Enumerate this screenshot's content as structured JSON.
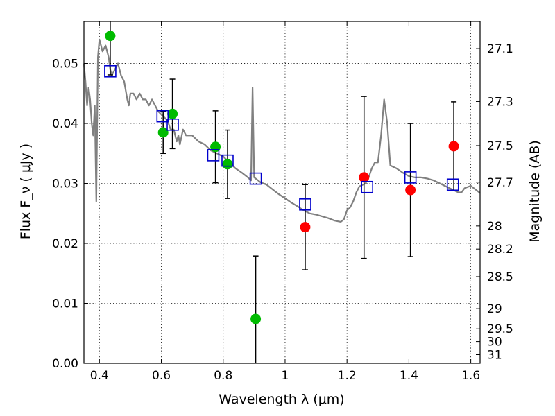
{
  "chart_data": {
    "type": "scatter",
    "title": "",
    "xlabel": "Wavelength  λ (μm)",
    "ylabel": "Flux  F_ν  ( μJy )",
    "y2label": "Magnitude (AB)",
    "xlim": [
      0.35,
      1.63
    ],
    "ylim": [
      0.0,
      0.057
    ],
    "grid": true,
    "legend": "none",
    "x_ticks": [
      {
        "value": 0.4,
        "label": "0.4"
      },
      {
        "value": 0.6,
        "label": "0.6"
      },
      {
        "value": 0.8,
        "label": "0.8"
      },
      {
        "value": 1.0,
        "label": "1"
      },
      {
        "value": 1.2,
        "label": "1.2"
      },
      {
        "value": 1.4,
        "label": "1.4"
      },
      {
        "value": 1.6,
        "label": "1.6"
      }
    ],
    "y_ticks": [
      {
        "value": 0.0,
        "label": "0.00"
      },
      {
        "value": 0.01,
        "label": "0.01"
      },
      {
        "value": 0.02,
        "label": "0.02"
      },
      {
        "value": 0.03,
        "label": "0.03"
      },
      {
        "value": 0.04,
        "label": "0.04"
      },
      {
        "value": 0.05,
        "label": "0.05"
      }
    ],
    "magnitude_ticks": [
      {
        "value": 27.1,
        "label": "27.1"
      },
      {
        "value": 27.3,
        "label": "27.3"
      },
      {
        "value": 27.5,
        "label": "27.5"
      },
      {
        "value": 27.7,
        "label": "27.7"
      },
      {
        "value": 28.0,
        "label": "28"
      },
      {
        "value": 28.2,
        "label": "28.2"
      },
      {
        "value": 28.5,
        "label": "28.5"
      },
      {
        "value": 29.0,
        "label": "29"
      },
      {
        "value": 29.5,
        "label": "29.5"
      },
      {
        "value": 30.0,
        "label": "30"
      },
      {
        "value": 31.0,
        "label": "31"
      }
    ],
    "colors": {
      "template": "#808080",
      "optical": "#00bb00",
      "infrared": "#ff0000",
      "model": "#0000cc",
      "errorbar": "#000000"
    },
    "template_spectrum": [
      [
        0.35,
        0.05
      ],
      [
        0.355,
        0.047
      ],
      [
        0.36,
        0.043
      ],
      [
        0.365,
        0.046
      ],
      [
        0.37,
        0.044
      ],
      [
        0.375,
        0.04
      ],
      [
        0.38,
        0.038
      ],
      [
        0.385,
        0.043
      ],
      [
        0.39,
        0.027
      ],
      [
        0.395,
        0.051
      ],
      [
        0.4,
        0.054
      ],
      [
        0.41,
        0.052
      ],
      [
        0.42,
        0.053
      ],
      [
        0.43,
        0.051
      ],
      [
        0.435,
        0.049
      ],
      [
        0.44,
        0.048
      ],
      [
        0.45,
        0.049
      ],
      [
        0.46,
        0.05
      ],
      [
        0.47,
        0.048
      ],
      [
        0.48,
        0.047
      ],
      [
        0.49,
        0.044
      ],
      [
        0.495,
        0.043
      ],
      [
        0.5,
        0.045
      ],
      [
        0.51,
        0.045
      ],
      [
        0.52,
        0.044
      ],
      [
        0.53,
        0.045
      ],
      [
        0.54,
        0.044
      ],
      [
        0.55,
        0.044
      ],
      [
        0.56,
        0.043
      ],
      [
        0.57,
        0.044
      ],
      [
        0.58,
        0.043
      ],
      [
        0.59,
        0.042
      ],
      [
        0.6,
        0.0415
      ],
      [
        0.61,
        0.041
      ],
      [
        0.62,
        0.0405
      ],
      [
        0.63,
        0.039
      ],
      [
        0.64,
        0.039
      ],
      [
        0.65,
        0.037
      ],
      [
        0.655,
        0.038
      ],
      [
        0.66,
        0.0365
      ],
      [
        0.67,
        0.039
      ],
      [
        0.68,
        0.038
      ],
      [
        0.7,
        0.038
      ],
      [
        0.72,
        0.037
      ],
      [
        0.74,
        0.0365
      ],
      [
        0.76,
        0.0355
      ],
      [
        0.78,
        0.035
      ],
      [
        0.8,
        0.0345
      ],
      [
        0.82,
        0.0335
      ],
      [
        0.84,
        0.0325
      ],
      [
        0.86,
        0.0318
      ],
      [
        0.88,
        0.031
      ],
      [
        0.89,
        0.0305
      ],
      [
        0.895,
        0.046
      ],
      [
        0.9,
        0.031
      ],
      [
        0.92,
        0.0302
      ],
      [
        0.94,
        0.0298
      ],
      [
        0.96,
        0.029
      ],
      [
        0.98,
        0.0282
      ],
      [
        1.0,
        0.0275
      ],
      [
        1.02,
        0.0268
      ],
      [
        1.04,
        0.0262
      ],
      [
        1.06,
        0.0255
      ],
      [
        1.08,
        0.025
      ],
      [
        1.1,
        0.0248
      ],
      [
        1.12,
        0.0245
      ],
      [
        1.14,
        0.0242
      ],
      [
        1.16,
        0.0238
      ],
      [
        1.18,
        0.0236
      ],
      [
        1.19,
        0.024
      ],
      [
        1.2,
        0.0255
      ],
      [
        1.21,
        0.026
      ],
      [
        1.22,
        0.027
      ],
      [
        1.23,
        0.0285
      ],
      [
        1.24,
        0.0295
      ],
      [
        1.26,
        0.03
      ],
      [
        1.27,
        0.031
      ],
      [
        1.28,
        0.0325
      ],
      [
        1.29,
        0.0335
      ],
      [
        1.3,
        0.0335
      ],
      [
        1.31,
        0.038
      ],
      [
        1.32,
        0.044
      ],
      [
        1.33,
        0.04
      ],
      [
        1.34,
        0.033
      ],
      [
        1.36,
        0.0325
      ],
      [
        1.38,
        0.0318
      ],
      [
        1.4,
        0.0312
      ],
      [
        1.42,
        0.031
      ],
      [
        1.44,
        0.031
      ],
      [
        1.46,
        0.0308
      ],
      [
        1.48,
        0.0305
      ],
      [
        1.5,
        0.03
      ],
      [
        1.52,
        0.0295
      ],
      [
        1.54,
        0.029
      ],
      [
        1.56,
        0.0285
      ],
      [
        1.57,
        0.0285
      ],
      [
        1.58,
        0.0292
      ],
      [
        1.6,
        0.0296
      ],
      [
        1.62,
        0.0288
      ],
      [
        1.63,
        0.0284
      ]
    ],
    "series": [
      {
        "marker": "circle",
        "color": "#00bb00",
        "points": [
          {
            "x": 0.435,
            "y": 0.0546,
            "err": 0.0065
          },
          {
            "x": 0.606,
            "y": 0.0385,
            "err": 0.0035
          },
          {
            "x": 0.636,
            "y": 0.0416,
            "err": 0.0058
          },
          {
            "x": 0.775,
            "y": 0.0361,
            "err": 0.006
          },
          {
            "x": 0.814,
            "y": 0.0332,
            "err": 0.0057
          },
          {
            "x": 0.905,
            "y": 0.0074,
            "err": 0.0105
          }
        ]
      },
      {
        "marker": "circle",
        "color": "#ff0000",
        "points": [
          {
            "x": 1.065,
            "y": 0.0227,
            "err": 0.0071
          },
          {
            "x": 1.255,
            "y": 0.031,
            "err": 0.0135
          },
          {
            "x": 1.405,
            "y": 0.0289,
            "err": 0.0111
          },
          {
            "x": 1.545,
            "y": 0.0362,
            "err": 0.0074
          }
        ]
      },
      {
        "marker": "square-open",
        "color": "#0000cc",
        "points": [
          {
            "x": 0.435,
            "y": 0.0487
          },
          {
            "x": 0.604,
            "y": 0.0412
          },
          {
            "x": 0.637,
            "y": 0.0398
          },
          {
            "x": 0.768,
            "y": 0.0347
          },
          {
            "x": 0.814,
            "y": 0.0338
          },
          {
            "x": 0.905,
            "y": 0.0308
          },
          {
            "x": 1.065,
            "y": 0.0265
          },
          {
            "x": 1.265,
            "y": 0.0294
          },
          {
            "x": 1.405,
            "y": 0.031
          },
          {
            "x": 1.542,
            "y": 0.0298
          }
        ]
      }
    ]
  }
}
